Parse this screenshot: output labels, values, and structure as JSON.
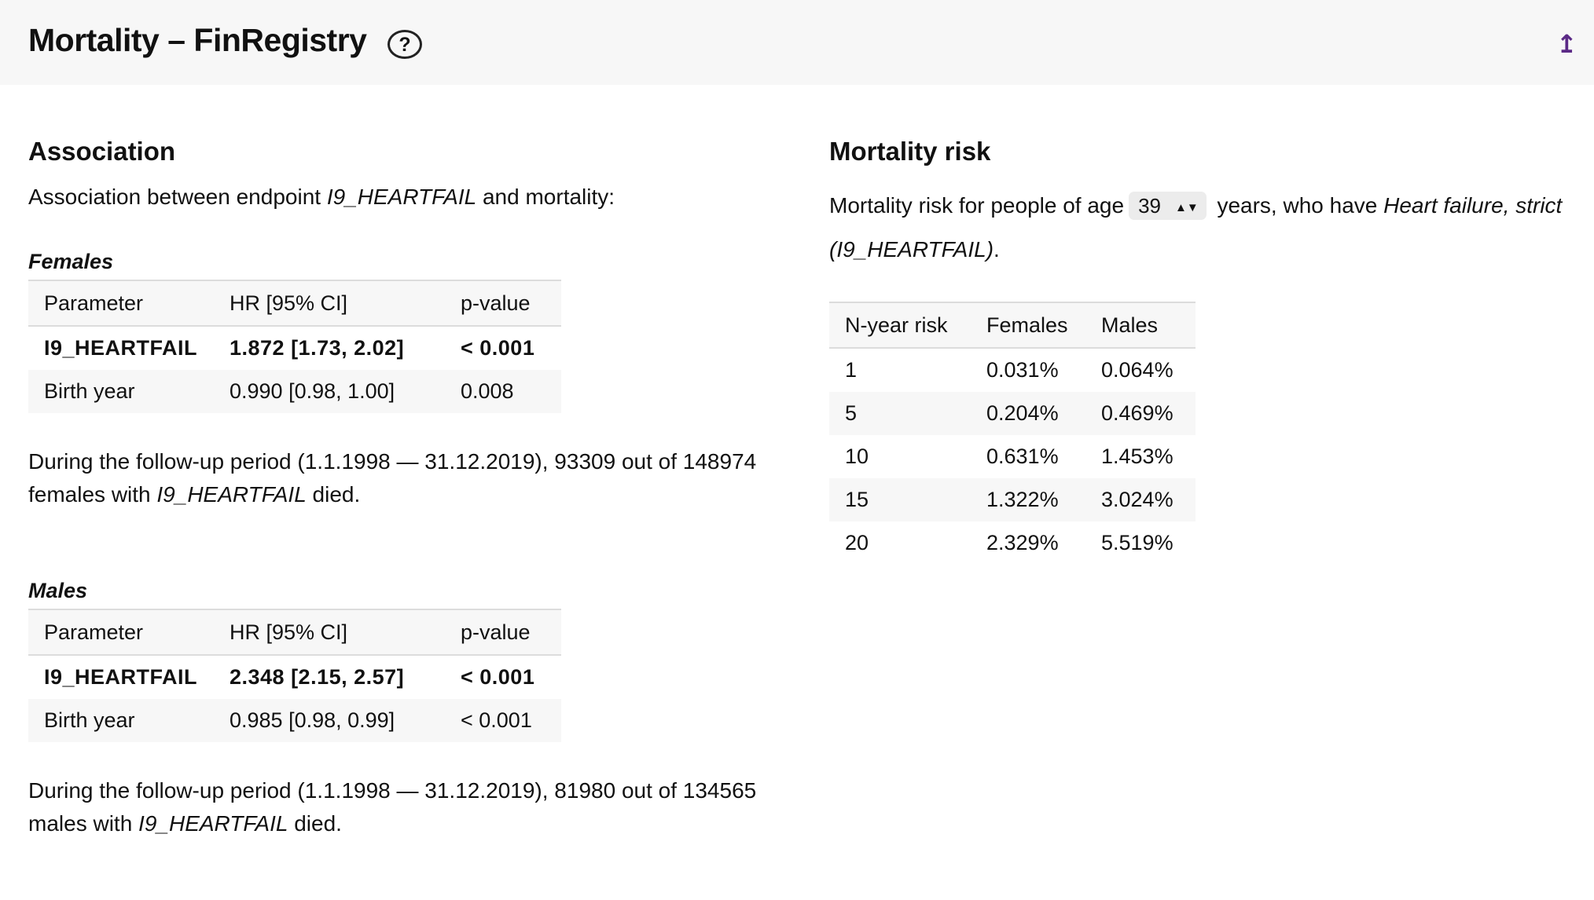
{
  "header": {
    "title": "Mortality – FinRegistry",
    "help_label": "?",
    "scroll_top_icon": "↥"
  },
  "association": {
    "title": "Association",
    "intro_before": "Association between endpoint ",
    "endpoint": "I9_HEARTFAIL",
    "intro_after": " and mortality:",
    "columns": [
      "Parameter",
      "HR [95% CI]",
      "p-value"
    ],
    "females": {
      "title": "Females",
      "rows": [
        {
          "parameter": "I9_HEARTFAIL",
          "hr": "1.872 [1.73, 2.02]",
          "p": "< 0.001"
        },
        {
          "parameter": "Birth year",
          "hr": "0.990 [0.98, 1.00]",
          "p": "0.008"
        }
      ],
      "followup_before": "During the follow-up period (1.1.1998 — 31.12.2019), 93309 out of 148974 females with ",
      "followup_endpoint": "I9_HEARTFAIL",
      "followup_after": " died."
    },
    "males": {
      "title": "Males",
      "rows": [
        {
          "parameter": "I9_HEARTFAIL",
          "hr": "2.348 [2.15, 2.57]",
          "p": "< 0.001"
        },
        {
          "parameter": "Birth year",
          "hr": "0.985 [0.98, 0.99]",
          "p": "< 0.001"
        }
      ],
      "followup_before": "During the follow-up period (1.1.1998 — 31.12.2019), 81980 out of 134565 males with ",
      "followup_endpoint": "I9_HEARTFAIL",
      "followup_after": " died."
    }
  },
  "risk": {
    "title": "Mortality risk",
    "text_before": "Mortality risk for people of age",
    "age_value": "39",
    "text_middle": " years, who have ",
    "condition": "Heart failure, strict (I9_HEARTFAIL)",
    "text_after": ".",
    "columns": [
      "N-year risk",
      "Females",
      "Males"
    ],
    "rows": [
      {
        "n": "1",
        "females": "0.031%",
        "males": "0.064%"
      },
      {
        "n": "5",
        "females": "0.204%",
        "males": "0.469%"
      },
      {
        "n": "10",
        "females": "0.631%",
        "males": "1.453%"
      },
      {
        "n": "15",
        "females": "1.322%",
        "males": "3.024%"
      },
      {
        "n": "20",
        "females": "2.329%",
        "males": "5.519%"
      }
    ]
  },
  "colors": {
    "header_bg": "#f7f7f7",
    "row_shade": "#f7f7f7",
    "accent_icon": "#5b2a86"
  }
}
